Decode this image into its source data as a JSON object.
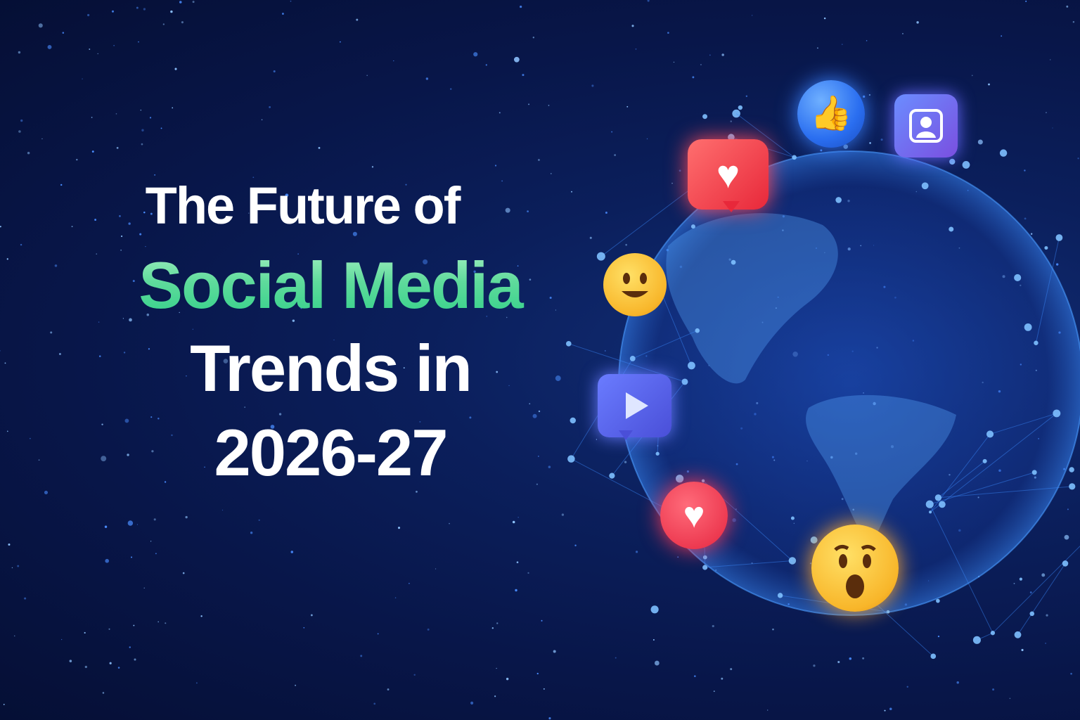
{
  "title": {
    "line1": "The Future of",
    "line2": "Social Media",
    "line3": "Trends in",
    "line4": "2026-27"
  },
  "colors": {
    "background": "#0b1f5c",
    "accent_green": "#3fd68f",
    "network_blue": "#3b8cff",
    "heart_red": "#e8283a",
    "emoji_yellow": "#f8b62a"
  },
  "icons": [
    "thumbs-up-icon",
    "profile-icon",
    "heart-bubble-icon",
    "smiley-emoji-icon",
    "play-video-icon",
    "heart-circle-icon",
    "surprised-emoji-icon"
  ]
}
